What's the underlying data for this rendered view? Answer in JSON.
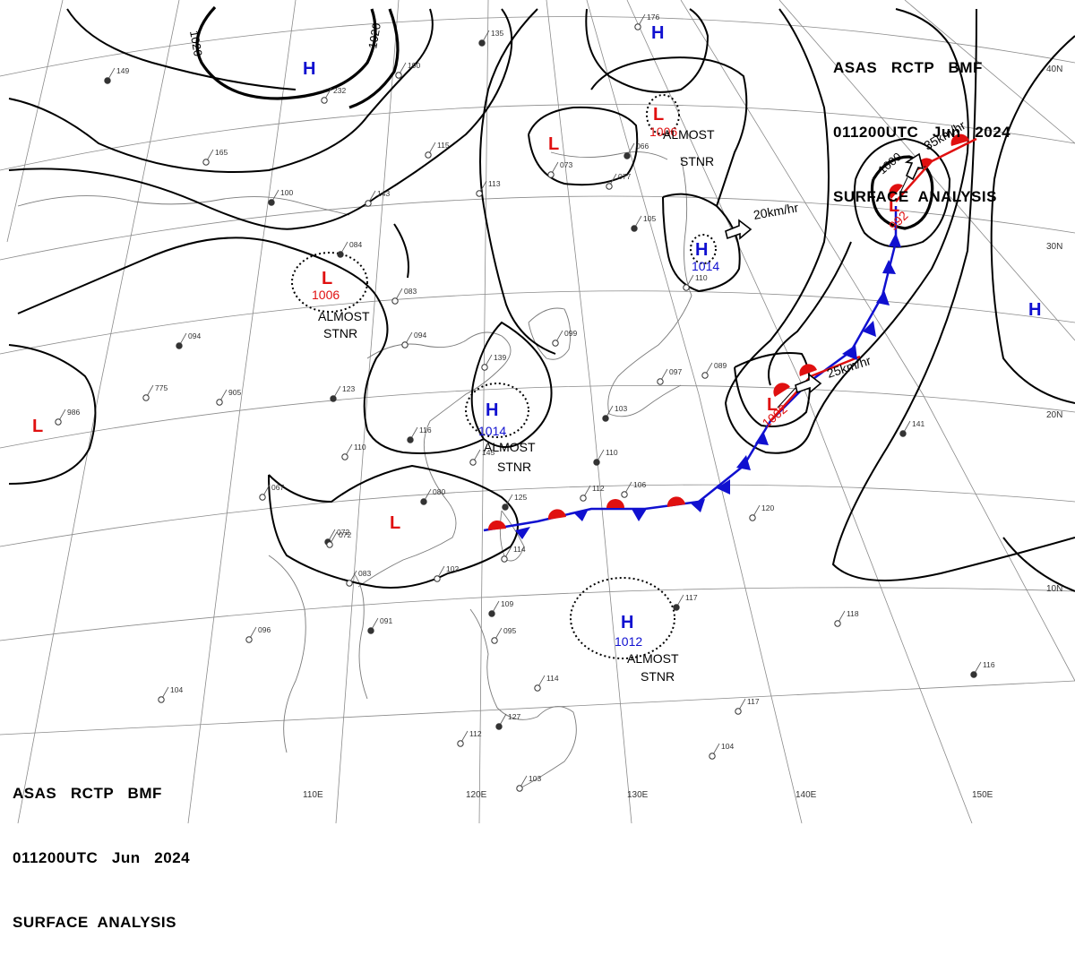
{
  "header": {
    "top_right": [
      "ASAS   RCTP   BMF",
      "011200UTC   Jun   2024",
      "SURFACE  ANALYSIS"
    ],
    "bottom_left": [
      "ASAS   RCTP   BMF",
      "011200UTC   Jun   2024",
      "SURFACE  ANALYSIS"
    ]
  },
  "grid_labels": {
    "lon": [
      "110E",
      "120E",
      "130E",
      "140E",
      "150E"
    ],
    "lat": [
      "40N",
      "30N",
      "20N",
      "10N"
    ]
  },
  "pressure_systems": [
    {
      "type": "H",
      "pressure": ""
    },
    {
      "type": "H",
      "pressure": ""
    },
    {
      "type": "L",
      "pressure": "1006",
      "note": [
        "ALMOST",
        "STNR"
      ]
    },
    {
      "type": "L",
      "pressure": ""
    },
    {
      "type": "L",
      "pressure": "1006",
      "note": [
        "ALMOST",
        "STNR"
      ]
    },
    {
      "type": "H",
      "pressure": "1014",
      "note": []
    },
    {
      "type": "H",
      "pressure": "1014",
      "note": [
        "ALMOST",
        "STNR"
      ]
    },
    {
      "type": "L",
      "pressure": "992",
      "note": []
    },
    {
      "type": "L",
      "pressure": "1002",
      "note": []
    },
    {
      "type": "H",
      "pressure": ""
    },
    {
      "type": "L",
      "pressure": ""
    },
    {
      "type": "L",
      "pressure": ""
    },
    {
      "type": "H",
      "pressure": "1012",
      "note": [
        "ALMOST",
        "STNR"
      ]
    }
  ],
  "isobar_labels": [
    "1020",
    "1020",
    "1000"
  ],
  "motion_vectors": [
    "20km/hr",
    "35km/hr",
    "25km/hr"
  ],
  "stations": [
    "135",
    "190",
    "232",
    "149",
    "115",
    "165",
    "100",
    "143",
    "113",
    "084",
    "083",
    "094",
    "094",
    "775",
    "905",
    "123",
    "110",
    "067",
    "072",
    "083",
    "072",
    "116",
    "139",
    "145",
    "125",
    "112",
    "106",
    "110",
    "114",
    "102",
    "091",
    "096",
    "104",
    "109",
    "095",
    "114",
    "127",
    "112",
    "103",
    "117",
    "118",
    "117",
    "116",
    "104",
    "120",
    "141",
    "089",
    "097",
    "103",
    "099",
    "110",
    "066",
    "077",
    "073",
    "105",
    "176",
    "986",
    "080"
  ],
  "colors": {
    "high": "#1010d0",
    "low": "#e01010",
    "cold_front": "#1010d0",
    "warm_front": "#e01010",
    "isobar": "#000000",
    "grid": "#8a8a8a",
    "coast": "#7a7a7a"
  }
}
